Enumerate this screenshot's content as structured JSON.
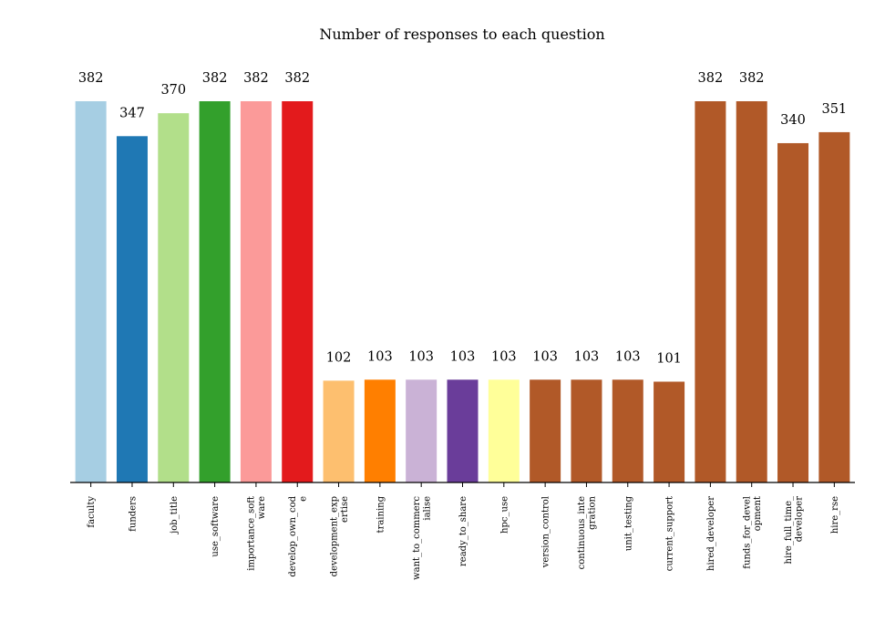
{
  "chart_data": {
    "type": "bar",
    "title": "Number of responses to each question",
    "xlabel": "",
    "ylabel": "",
    "ylim": [
      0,
      382
    ],
    "grid": false,
    "legend": "none",
    "categories": [
      "faculty",
      "funders",
      "job_title",
      "use_software",
      "importance_soft\nware",
      "develop_own_cod\ne",
      "development_exp\nertise",
      "training",
      "want_to_commerc\nialise",
      "ready_to_share",
      "hpc_use",
      "version_control",
      "continuous_inte\ngration",
      "unit_testing",
      "current_support",
      "hired_developer",
      "funds_for_devel\nopment",
      "hire_full_time_\ndeveloper",
      "hire_rse"
    ],
    "values": [
      382,
      347,
      370,
      382,
      382,
      382,
      102,
      103,
      103,
      103,
      103,
      103,
      103,
      103,
      101,
      382,
      382,
      340,
      351
    ],
    "colors": [
      "#a6cee3",
      "#1f78b4",
      "#b2df8a",
      "#33a02c",
      "#fb9a99",
      "#e31a1c",
      "#fdbf6f",
      "#ff7f00",
      "#cab2d6",
      "#6a3d9a",
      "#ffff99",
      "#b15928",
      "#b15928",
      "#b15928",
      "#b15928",
      "#b15928",
      "#b15928",
      "#b15928",
      "#b15928"
    ]
  }
}
